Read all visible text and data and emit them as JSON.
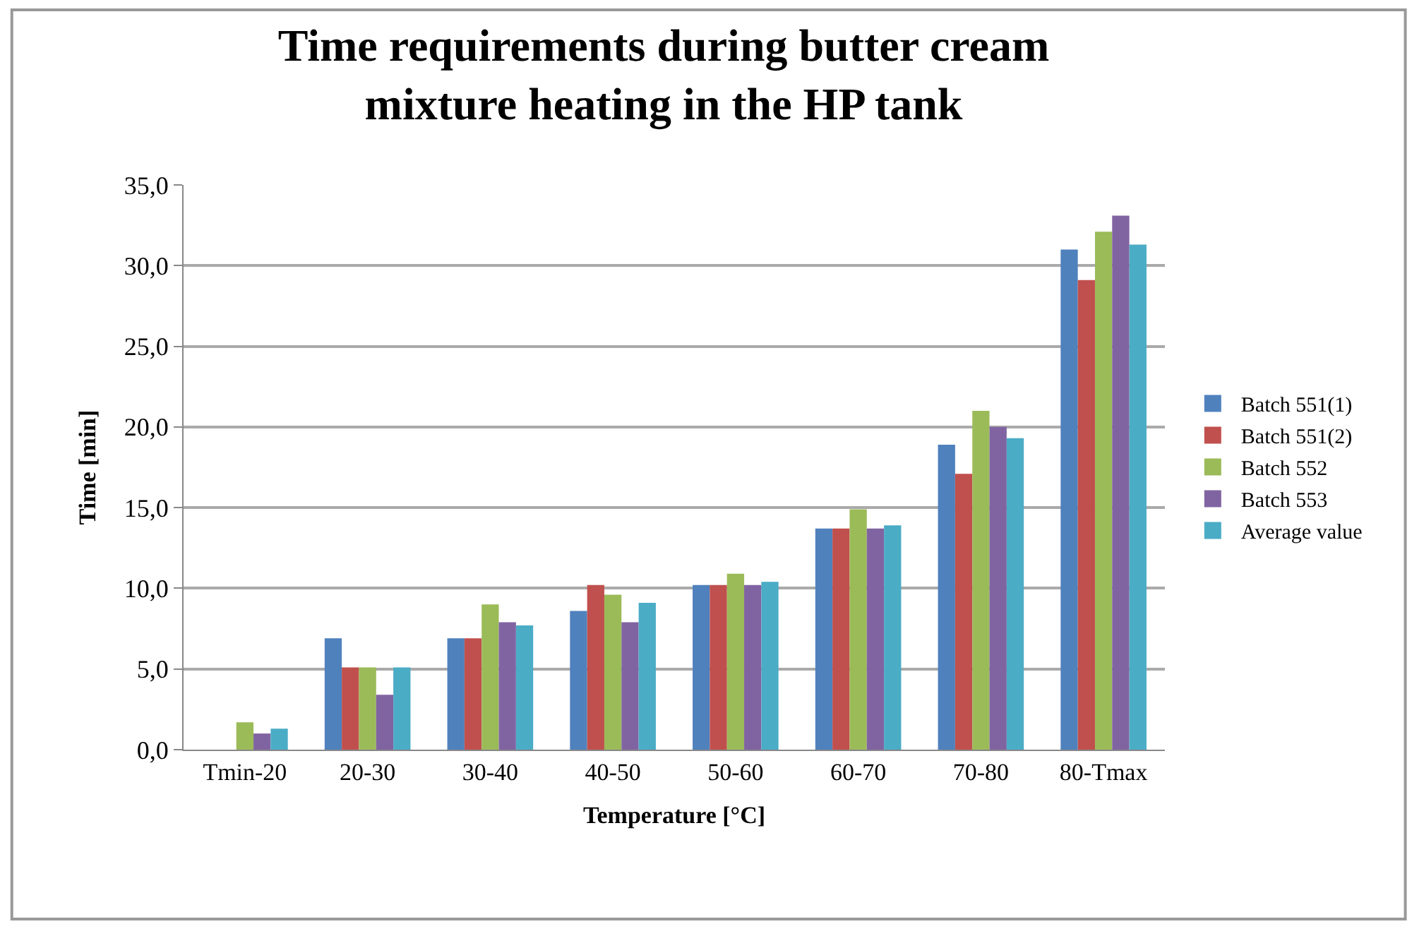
{
  "chart_data": {
    "type": "bar",
    "title": "Time requirements during butter cream mixture heating in the HP tank",
    "xlabel": "Temperature [°C]",
    "ylabel": "Time [min]",
    "categories": [
      "Tmin-20",
      "20-30",
      "30-40",
      "40-50",
      "50-60",
      "60-70",
      "70-80",
      "80-Tmax"
    ],
    "series": [
      {
        "name": "Batch 551(1)",
        "color": "#4f81bd",
        "values": [
          0,
          6.9,
          6.9,
          8.6,
          10.2,
          13.7,
          18.9,
          31.0
        ]
      },
      {
        "name": "Batch 551(2)",
        "color": "#c0504d",
        "values": [
          0,
          5.1,
          6.9,
          10.2,
          10.2,
          13.7,
          17.1,
          29.1
        ]
      },
      {
        "name": "Batch 552",
        "color": "#9bbb59",
        "values": [
          1.7,
          5.1,
          9.0,
          9.6,
          10.9,
          14.9,
          21.0,
          32.1
        ]
      },
      {
        "name": "Batch 553",
        "color": "#8064a2",
        "values": [
          1.0,
          3.4,
          7.9,
          7.9,
          10.2,
          13.7,
          20.0,
          33.1
        ]
      },
      {
        "name": "Average value",
        "color": "#4bacc6",
        "values": [
          1.3,
          5.1,
          7.7,
          9.1,
          10.4,
          13.9,
          19.3,
          31.3
        ]
      }
    ],
    "ylim": [
      0,
      35
    ],
    "yticks": [
      {
        "value": 0,
        "label": "0,0"
      },
      {
        "value": 5,
        "label": "5,0"
      },
      {
        "value": 10,
        "label": "10,0"
      },
      {
        "value": 15,
        "label": "15,0"
      },
      {
        "value": 20,
        "label": "20,0"
      },
      {
        "value": 25,
        "label": "25,0"
      },
      {
        "value": 30,
        "label": "30,0"
      },
      {
        "value": 35,
        "label": "35,0"
      }
    ],
    "grid": "y",
    "legend": "right"
  }
}
